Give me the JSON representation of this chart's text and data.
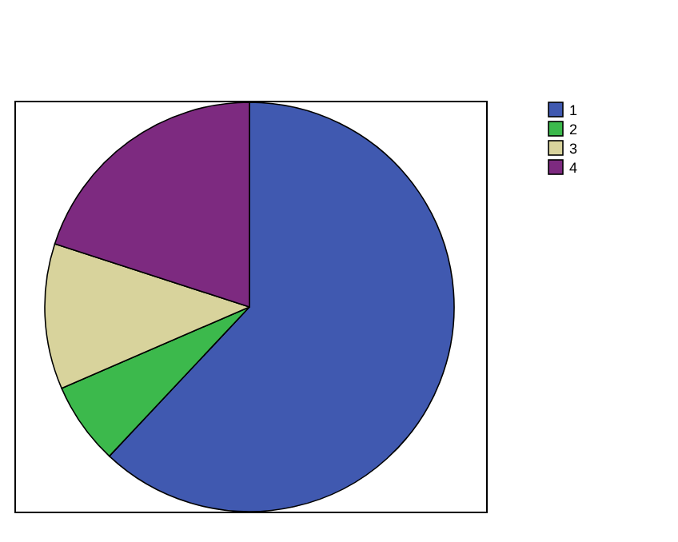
{
  "chart_data": {
    "type": "pie",
    "categories": [
      "1",
      "2",
      "3",
      "4"
    ],
    "values": [
      62,
      6.5,
      11.5,
      20
    ],
    "colors": [
      "#4059b0",
      "#3cb94c",
      "#d8d39c",
      "#7d2a80"
    ],
    "legend": "top right"
  }
}
